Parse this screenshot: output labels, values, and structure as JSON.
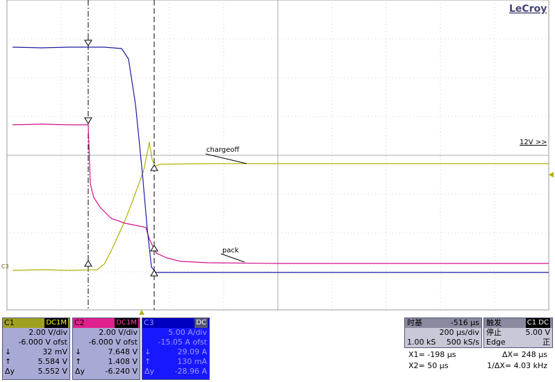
{
  "brand": "LeCroy",
  "labels": {
    "chargeoff": "chargeoff",
    "pack": "pack",
    "range": "12V >>",
    "c3_marker": "C3"
  },
  "channels": [
    {
      "name": "C1",
      "coupling": "DC1M",
      "rows": [
        [
          "",
          "2.00 V/div"
        ],
        [
          "",
          "-6.000 V ofst"
        ],
        [
          "↓",
          "32 mV"
        ],
        [
          "↑",
          "5.584 V"
        ],
        [
          "Δy",
          "5.552 V"
        ]
      ]
    },
    {
      "name": "C2",
      "coupling": "DC1M",
      "rows": [
        [
          "",
          "2.00 V/div"
        ],
        [
          "",
          "-6.000 V ofst"
        ],
        [
          "↓",
          "7.648 V"
        ],
        [
          "↑",
          "1.408 V"
        ],
        [
          "Δy",
          "-6.240 V"
        ]
      ]
    },
    {
      "name": "C3",
      "coupling": "DC",
      "rows": [
        [
          "",
          "5.00 A/div"
        ],
        [
          "",
          "-15.05 A ofst"
        ],
        [
          "↓",
          "29.09 A"
        ],
        [
          "↑",
          "130 mA"
        ],
        [
          "Δy",
          "-28.96 A"
        ]
      ]
    }
  ],
  "timebase": {
    "title": "时基",
    "delay": "-516 µs",
    "scale": "200 µs/div",
    "points": "1.00 kS",
    "rate": "500 kS/s"
  },
  "trigger": {
    "title": "触发",
    "source": "C1 DC",
    "state": "停止",
    "level": "5.00 V",
    "type": "Edge",
    "slope": "正"
  },
  "cursors": [
    [
      "X1=  -198 µs",
      "ΔX=   248 µs"
    ],
    [
      "X2=   50 µs",
      "1/ΔX=  4.03 kHz"
    ]
  ]
}
